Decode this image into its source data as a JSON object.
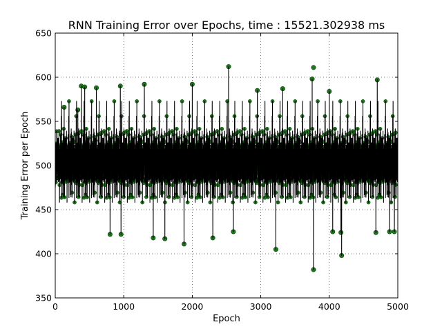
{
  "chart_data": {
    "type": "line",
    "title": "RNN Training Error over Epochs, time : 15521.302938 ms",
    "xlabel": "Epoch",
    "ylabel": "Training Error per Epoch",
    "xlim": [
      0,
      5000
    ],
    "ylim": [
      350,
      650
    ],
    "xticks": [
      "0",
      "1000",
      "2000",
      "3000",
      "4000",
      "5000"
    ],
    "yticks": [
      "350",
      "400",
      "450",
      "500",
      "550",
      "600",
      "650"
    ],
    "grid": true,
    "legend": "none",
    "series": [
      {
        "line_color": "#000000",
        "marker_color": "#1a7a1a",
        "n_points": 5000,
        "center": 497,
        "spread": 22,
        "seed": 15521,
        "notable_points": [
          {
            "x": 130,
            "y": 566
          },
          {
            "x": 330,
            "y": 563
          },
          {
            "x": 380,
            "y": 590
          },
          {
            "x": 430,
            "y": 589
          },
          {
            "x": 600,
            "y": 588
          },
          {
            "x": 800,
            "y": 422
          },
          {
            "x": 950,
            "y": 590
          },
          {
            "x": 960,
            "y": 422
          },
          {
            "x": 1300,
            "y": 592
          },
          {
            "x": 1430,
            "y": 418
          },
          {
            "x": 1600,
            "y": 417
          },
          {
            "x": 1880,
            "y": 411
          },
          {
            "x": 2000,
            "y": 592
          },
          {
            "x": 2300,
            "y": 418
          },
          {
            "x": 2530,
            "y": 612
          },
          {
            "x": 2600,
            "y": 425
          },
          {
            "x": 2950,
            "y": 585
          },
          {
            "x": 3220,
            "y": 405
          },
          {
            "x": 3320,
            "y": 587
          },
          {
            "x": 3750,
            "y": 598
          },
          {
            "x": 3770,
            "y": 611
          },
          {
            "x": 3770,
            "y": 382
          },
          {
            "x": 4000,
            "y": 584
          },
          {
            "x": 4050,
            "y": 425
          },
          {
            "x": 4170,
            "y": 424
          },
          {
            "x": 4180,
            "y": 398
          },
          {
            "x": 4680,
            "y": 424
          },
          {
            "x": 4700,
            "y": 597
          },
          {
            "x": 4880,
            "y": 425
          },
          {
            "x": 4950,
            "y": 425
          }
        ]
      }
    ]
  }
}
